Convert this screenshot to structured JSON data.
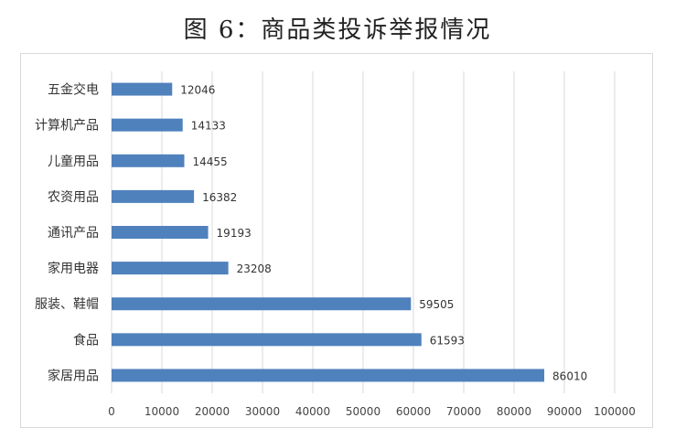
{
  "chart_data": {
    "type": "bar",
    "orientation": "horizontal",
    "title": "图 6：商品类投诉举报情况",
    "categories": [
      "五金交电",
      "计算机产品",
      "儿童用品",
      "农资用品",
      "通讯产品",
      "家用电器",
      "服装、鞋帽",
      "食品",
      "家居用品"
    ],
    "values": [
      12046,
      14133,
      14455,
      16382,
      19193,
      23208,
      59505,
      61593,
      86010
    ],
    "xlim": [
      0,
      100000
    ],
    "xticks": [
      0,
      10000,
      20000,
      30000,
      40000,
      50000,
      60000,
      70000,
      80000,
      90000,
      100000
    ],
    "grid": true,
    "bar_color": "#4f81bd",
    "data_labels": true
  }
}
